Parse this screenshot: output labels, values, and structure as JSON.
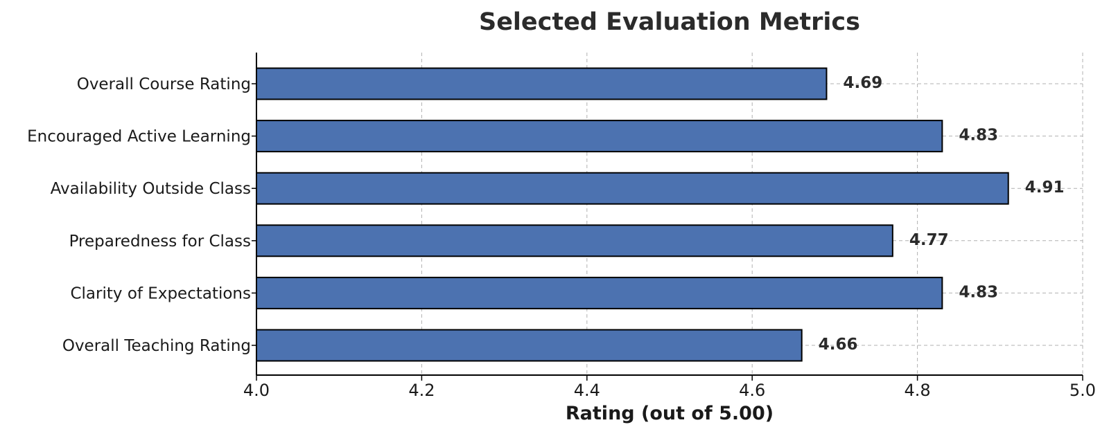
{
  "chart_data": {
    "type": "bar",
    "orientation": "horizontal",
    "title": "Selected Evaluation Metrics",
    "xlabel": "Rating (out of 5.00)",
    "ylabel": "",
    "xlim": [
      4.0,
      5.0
    ],
    "x_ticks": [
      "4.0",
      "4.2",
      "4.4",
      "4.6",
      "4.8",
      "5.0"
    ],
    "categories": [
      "Overall Course Rating",
      "Encouraged Active Learning",
      "Availability Outside Class",
      "Preparedness for Class",
      "Clarity of Expectations",
      "Overall Teaching Rating"
    ],
    "values": [
      4.69,
      4.83,
      4.91,
      4.77,
      4.83,
      4.66
    ],
    "data_labels": [
      "4.69",
      "4.83",
      "4.91",
      "4.77",
      "4.83",
      "4.66"
    ],
    "bar_color": "#4c72b0",
    "grid": true,
    "legend": false
  }
}
